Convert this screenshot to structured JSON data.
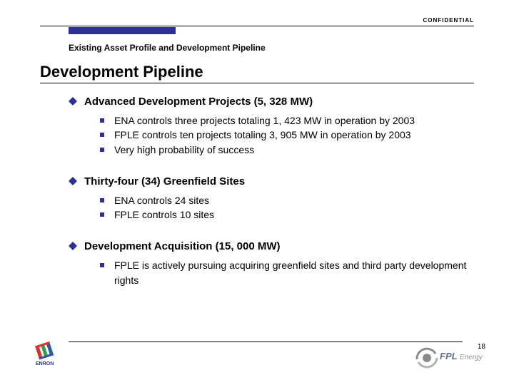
{
  "header": {
    "confidential": "CONFIDENTIAL",
    "accent_color": "#2e3192",
    "breadcrumb": "Existing Asset Profile and Development Pipeline",
    "title": "Development Pipeline"
  },
  "diamond_color": "#2e3192",
  "square_color": "#2e3192",
  "sections": [
    {
      "title": "Advanced Development Projects (5, 328 MW)",
      "items": [
        "ENA controls three projects totaling 1, 423 MW in operation by 2003",
        "FPLE controls ten projects totaling 3, 905 MW in operation by 2003",
        "Very high probability of success"
      ]
    },
    {
      "title": "Thirty-four (34) Greenfield Sites",
      "items": [
        "ENA controls 24 sites",
        "FPLE controls 10 sites"
      ]
    },
    {
      "title": "Development Acquisition (15, 000 MW)",
      "items": [
        "FPLE is actively pursuing acquiring greenfield sites and third party development rights"
      ]
    }
  ],
  "footer": {
    "page_number": "18",
    "left_logo_name": "enron-logo",
    "right_logo_name": "fpl-energy-logo",
    "right_logo_text": "FPL Energy"
  },
  "logo_colors": {
    "enron_red": "#d6342b",
    "enron_green": "#3a9b4a",
    "enron_blue": "#2e5aa8",
    "fpl_gray": "#8a8d90",
    "fpl_accent": "#5c6f8a"
  }
}
